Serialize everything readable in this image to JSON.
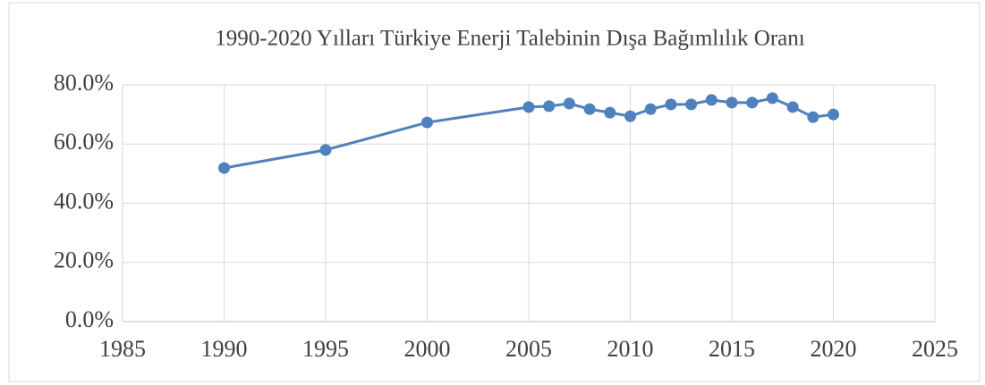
{
  "chart_data": {
    "type": "line",
    "title": "1990-2020 Yılları Türkiye Enerji Talebinin Dışa Bağımlılık Oranı",
    "x": [
      1990,
      1995,
      2000,
      2005,
      2006,
      2007,
      2008,
      2009,
      2010,
      2011,
      2012,
      2013,
      2014,
      2015,
      2016,
      2017,
      2018,
      2019,
      2020
    ],
    "series": [
      {
        "color": "#4f81bd",
        "values": [
          51.9,
          58.0,
          67.3,
          72.5,
          72.8,
          73.7,
          71.8,
          70.6,
          69.4,
          71.8,
          73.4,
          73.4,
          74.9,
          74.0,
          74.0,
          75.5,
          72.5,
          69.1,
          70.0
        ]
      }
    ],
    "xlim": [
      1985,
      2025
    ],
    "xticks": [
      1985,
      1990,
      1995,
      2000,
      2005,
      2010,
      2015,
      2020,
      2025
    ],
    "ylim": [
      0,
      80
    ],
    "yticks": [
      {
        "value": 0,
        "label": "0.0%"
      },
      {
        "value": 20,
        "label": "20.0%"
      },
      {
        "value": 40,
        "label": "40.0%"
      },
      {
        "value": 60,
        "label": "60.0%"
      },
      {
        "value": 80,
        "label": "80.0%"
      }
    ],
    "grid": true
  }
}
